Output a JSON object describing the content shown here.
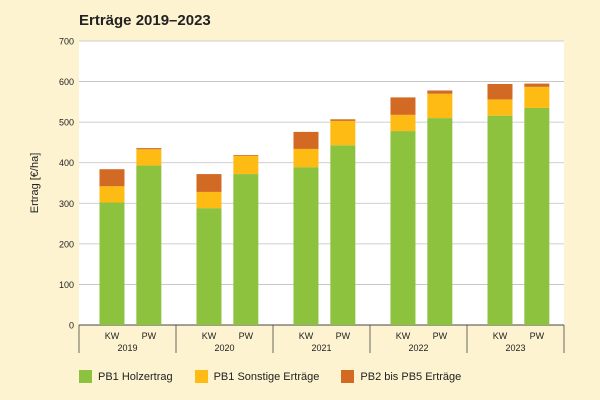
{
  "chart_data": {
    "type": "bar",
    "stacked": true,
    "title": "Erträge 2019–2023",
    "ylabel": "Ertrag [€/ha]",
    "xlabel": "",
    "ylim": [
      0,
      700
    ],
    "yticks": [
      0,
      100,
      200,
      300,
      400,
      500,
      600,
      700
    ],
    "grid": true,
    "legend_position": "bottom",
    "groups": [
      "2019",
      "2020",
      "2021",
      "2022",
      "2023"
    ],
    "categories": [
      "KW",
      "PW"
    ],
    "series": [
      {
        "name": "PB1 Holzertrag",
        "color": "#8dc23f",
        "values": [
          [
            302,
            393
          ],
          [
            288,
            372
          ],
          [
            389,
            443
          ],
          [
            478,
            510
          ],
          [
            516,
            535
          ]
        ]
      },
      {
        "name": "PB1 Sonstige Erträge",
        "color": "#fdbb14",
        "values": [
          [
            40,
            40
          ],
          [
            40,
            45
          ],
          [
            45,
            60
          ],
          [
            40,
            60
          ],
          [
            40,
            52
          ]
        ]
      },
      {
        "name": "PB2 bis PB5 Erträge",
        "color": "#d36a24",
        "values": [
          [
            42,
            3
          ],
          [
            44,
            2
          ],
          [
            42,
            4
          ],
          [
            43,
            8
          ],
          [
            38,
            8
          ]
        ]
      }
    ]
  }
}
